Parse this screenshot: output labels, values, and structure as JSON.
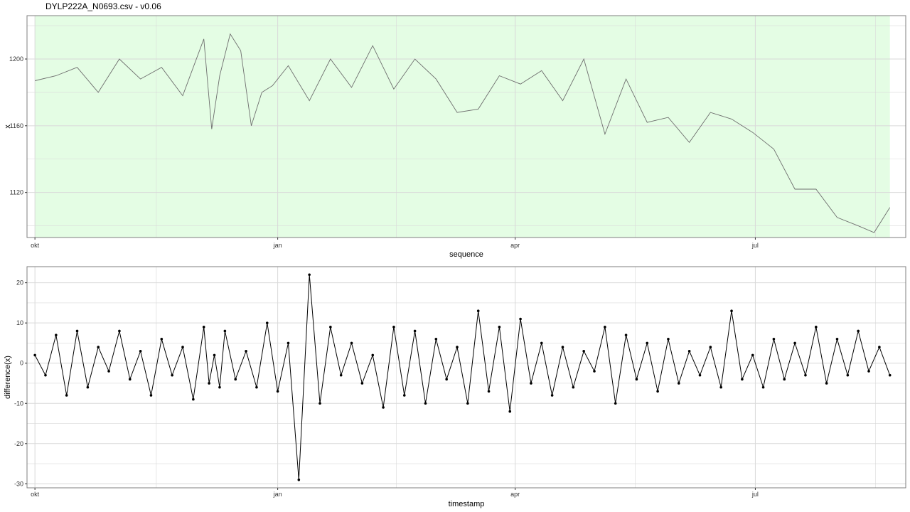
{
  "header": {
    "title": "DYLP222A_N0693.csv - v0.06"
  },
  "colors": {
    "highlight": "#e4fde4",
    "line_top": "#6e6e6e",
    "line_bottom": "#000000",
    "grid": "#d9d9d9"
  },
  "chart_data": [
    {
      "type": "line",
      "xlabel": "sequence",
      "ylabel": "x",
      "ylim": [
        1093,
        1226
      ],
      "xlim": [
        "2021-09-28",
        "2022-08-27"
      ],
      "x_ticks": [
        {
          "date": "2021-10-01",
          "label": "okt"
        },
        {
          "date": "2022-01-01",
          "label": "jan"
        },
        {
          "date": "2022-04-01",
          "label": "apr"
        },
        {
          "date": "2022-07-01",
          "label": "jul"
        }
      ],
      "y_ticks": [
        1120,
        1160,
        1200
      ],
      "highlight_range": [
        "2021-10-01",
        "2022-08-21"
      ],
      "series": [
        {
          "x": [
            "2021-10-01",
            "2021-10-09",
            "2021-10-17",
            "2021-10-25",
            "2021-11-02",
            "2021-11-10",
            "2021-11-18",
            "2021-11-26",
            "2021-12-04",
            "2021-12-07",
            "2021-12-10",
            "2021-12-14",
            "2021-12-18",
            "2021-12-22",
            "2021-12-26",
            "2021-12-30",
            "2022-01-05",
            "2022-01-13",
            "2022-01-21",
            "2022-01-29",
            "2022-02-06",
            "2022-02-14",
            "2022-02-22",
            "2022-03-02",
            "2022-03-10",
            "2022-03-18",
            "2022-03-26",
            "2022-04-03",
            "2022-04-11",
            "2022-04-19",
            "2022-04-27",
            "2022-05-05",
            "2022-05-13",
            "2022-05-21",
            "2022-05-29",
            "2022-06-06",
            "2022-06-14",
            "2022-06-22",
            "2022-06-30",
            "2022-07-08",
            "2022-07-16",
            "2022-07-24",
            "2022-08-01",
            "2022-08-09",
            "2022-08-15",
            "2022-08-21"
          ],
          "values": [
            1187,
            1190,
            1195,
            1180,
            1200,
            1188,
            1195,
            1178,
            1212,
            1158,
            1190,
            1215,
            1205,
            1160,
            1180,
            1184,
            1196,
            1175,
            1200,
            1183,
            1208,
            1182,
            1200,
            1188,
            1168,
            1170,
            1190,
            1185,
            1193,
            1175,
            1200,
            1155,
            1188,
            1162,
            1165,
            1150,
            1168,
            1164,
            1156,
            1146,
            1122,
            1122,
            1105,
            1100,
            1096,
            1111
          ]
        }
      ]
    },
    {
      "type": "line",
      "xlabel": "timestamp",
      "ylabel": "difference(x)",
      "ylim": [
        -31,
        24
      ],
      "xlim": [
        "2021-09-28",
        "2022-08-27"
      ],
      "x_ticks": [
        {
          "date": "2021-10-01",
          "label": "okt"
        },
        {
          "date": "2022-01-01",
          "label": "jan"
        },
        {
          "date": "2022-04-01",
          "label": "apr"
        },
        {
          "date": "2022-07-01",
          "label": "jul"
        }
      ],
      "y_ticks": [
        -30,
        -20,
        -10,
        0,
        10,
        20
      ],
      "series": [
        {
          "markers": true,
          "x": [
            "2021-10-01",
            "2021-10-05",
            "2021-10-09",
            "2021-10-13",
            "2021-10-17",
            "2021-10-21",
            "2021-10-25",
            "2021-10-29",
            "2021-11-02",
            "2021-11-06",
            "2021-11-10",
            "2021-11-14",
            "2021-11-18",
            "2021-11-22",
            "2021-11-26",
            "2021-11-30",
            "2021-12-04",
            "2021-12-06",
            "2021-12-08",
            "2021-12-10",
            "2021-12-12",
            "2021-12-16",
            "2021-12-20",
            "2021-12-24",
            "2021-12-28",
            "2022-01-01",
            "2022-01-05",
            "2022-01-09",
            "2022-01-13",
            "2022-01-17",
            "2022-01-21",
            "2022-01-25",
            "2022-01-29",
            "2022-02-02",
            "2022-02-06",
            "2022-02-10",
            "2022-02-14",
            "2022-02-18",
            "2022-02-22",
            "2022-02-26",
            "2022-03-02",
            "2022-03-06",
            "2022-03-10",
            "2022-03-14",
            "2022-03-18",
            "2022-03-22",
            "2022-03-26",
            "2022-03-30",
            "2022-04-03",
            "2022-04-07",
            "2022-04-11",
            "2022-04-15",
            "2022-04-19",
            "2022-04-23",
            "2022-04-27",
            "2022-05-01",
            "2022-05-05",
            "2022-05-09",
            "2022-05-13",
            "2022-05-17",
            "2022-05-21",
            "2022-05-25",
            "2022-05-29",
            "2022-06-02",
            "2022-06-06",
            "2022-06-10",
            "2022-06-14",
            "2022-06-18",
            "2022-06-22",
            "2022-06-26",
            "2022-06-30",
            "2022-07-04",
            "2022-07-08",
            "2022-07-12",
            "2022-07-16",
            "2022-07-20",
            "2022-07-24",
            "2022-07-28",
            "2022-08-01",
            "2022-08-05",
            "2022-08-09",
            "2022-08-13",
            "2022-08-17",
            "2022-08-21"
          ],
          "values": [
            2,
            -3,
            7,
            -8,
            8,
            -6,
            4,
            -2,
            8,
            -4,
            3,
            -8,
            6,
            -3,
            4,
            -9,
            9,
            -5,
            2,
            -6,
            8,
            -4,
            3,
            -6,
            10,
            -7,
            5,
            -29,
            22,
            -10,
            9,
            -3,
            5,
            -5,
            2,
            -11,
            9,
            -8,
            8,
            -10,
            6,
            -4,
            4,
            -10,
            13,
            -7,
            9,
            -12,
            11,
            -5,
            5,
            -8,
            4,
            -6,
            3,
            -2,
            9,
            -10,
            7,
            -4,
            5,
            -7,
            6,
            -5,
            3,
            -3,
            4,
            -6,
            13,
            -4,
            2,
            -6,
            6,
            -4,
            5,
            -3,
            9,
            -5,
            6,
            -3,
            8,
            -2,
            4,
            -3
          ]
        }
      ]
    }
  ]
}
